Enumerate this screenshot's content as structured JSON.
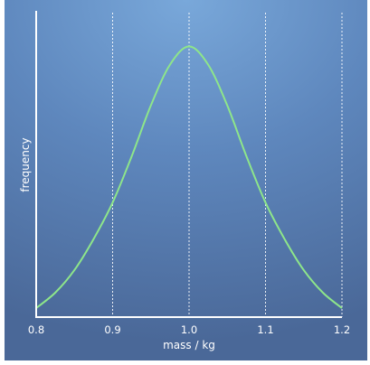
{
  "chart_data": {
    "type": "line",
    "xlabel": "mass / kg",
    "ylabel": "frequency",
    "xlim": [
      0.8,
      1.2
    ],
    "ylim": [
      0,
      1.05
    ],
    "xticks": [
      "0.8",
      "0.9",
      "1.0",
      "1.1",
      "1.2"
    ],
    "grid": "vertical dashed at x ticks",
    "series": [
      {
        "color": "#8ee68a",
        "x": [
          0.8,
          0.825,
          0.85,
          0.875,
          0.9,
          0.925,
          0.95,
          0.975,
          1.0,
          1.025,
          1.05,
          1.075,
          1.1,
          1.125,
          1.15,
          1.175,
          1.2
        ],
        "y": [
          0.0,
          0.055,
          0.135,
          0.245,
          0.375,
          0.54,
          0.72,
          0.865,
          0.93,
          0.865,
          0.72,
          0.54,
          0.375,
          0.245,
          0.135,
          0.055,
          0.0
        ]
      }
    ]
  },
  "colors": {
    "axis": "#ffffff",
    "curve": "#8ee68a"
  }
}
